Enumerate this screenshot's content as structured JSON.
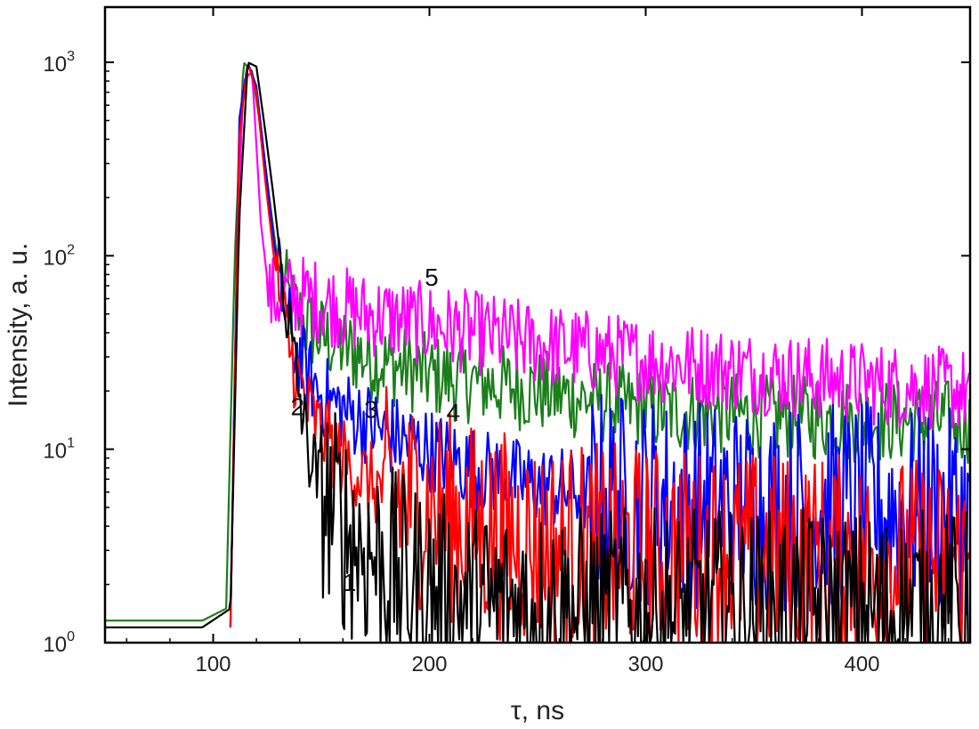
{
  "chart_data": {
    "type": "line",
    "xlabel": "τ, ns",
    "ylabel": "Intensity, a. u.",
    "xlim": [
      50,
      450
    ],
    "ylim": [
      1,
      1000
    ],
    "yscale": "log",
    "grid": false,
    "legend": "none",
    "x_ticks": [
      100,
      200,
      300,
      400
    ],
    "y_ticks": [
      {
        "value": 1,
        "base": "10",
        "exp": "0"
      },
      {
        "value": 10,
        "base": "10",
        "exp": "1"
      },
      {
        "value": 100,
        "base": "10",
        "exp": "2"
      },
      {
        "value": 1000,
        "base": "10",
        "exp": "3"
      }
    ],
    "series": [
      {
        "label": "1",
        "color": "#000000",
        "x": [
          50,
          95,
          108,
          112,
          116,
          120,
          124,
          128,
          132,
          138,
          144,
          150,
          160,
          170,
          180,
          190,
          200,
          220,
          250,
          300,
          350,
          400,
          450
        ],
        "y": [
          1.2,
          1.2,
          1.5,
          150,
          1000,
          950,
          450,
          200,
          80,
          25,
          10,
          6,
          4,
          3,
          2.5,
          2,
          1.8,
          1.5,
          1.5,
          1.4,
          1.4,
          1.4,
          1.4
        ]
      },
      {
        "label": "2",
        "color": "#ff0000",
        "x": [
          108,
          112,
          116,
          120,
          124,
          128,
          132,
          138,
          144,
          150,
          160,
          170,
          180,
          200,
          220,
          250,
          300,
          350,
          400,
          450
        ],
        "y": [
          1.2,
          400,
          1000,
          700,
          250,
          100,
          50,
          25,
          16,
          12,
          9,
          7,
          6,
          5,
          4,
          3.2,
          3,
          2.8,
          2.7,
          2.5
        ]
      },
      {
        "label": "3",
        "color": "#0000ff",
        "x": [
          108,
          112,
          116,
          120,
          124,
          128,
          132,
          138,
          144,
          150,
          160,
          170,
          180,
          200,
          220,
          250,
          300,
          350,
          400,
          450
        ],
        "y": [
          1.2,
          500,
          1000,
          750,
          300,
          120,
          60,
          32,
          24,
          19,
          16,
          14,
          12,
          10,
          8,
          6.5,
          5.5,
          5,
          5,
          4.5
        ]
      },
      {
        "label": "4",
        "color": "#1a7f1a",
        "x": [
          50,
          95,
          106,
          110,
          114,
          118,
          122,
          126,
          130,
          136,
          142,
          150,
          170,
          200,
          250,
          300,
          350,
          400,
          450
        ],
        "y": [
          1.3,
          1.3,
          1.5,
          100,
          1000,
          900,
          450,
          200,
          90,
          55,
          45,
          38,
          30,
          24,
          20,
          16,
          15,
          14,
          14
        ]
      },
      {
        "label": "5",
        "color": "#ff00ff",
        "x": [
          108,
          111,
          114,
          118,
          122,
          126,
          130,
          140,
          150,
          170,
          200,
          250,
          300,
          350,
          400,
          450
        ],
        "y": [
          1.2,
          100,
          800,
          900,
          150,
          60,
          62,
          62,
          58,
          50,
          44,
          35,
          29,
          25,
          22,
          20
        ]
      }
    ],
    "annotations": [
      {
        "text": "5",
        "x": 201,
        "y": 70
      },
      {
        "text": "4",
        "x": 211,
        "y": 14
      },
      {
        "text": "3",
        "x": 173,
        "y": 14.5
      },
      {
        "text": "2",
        "x": 139,
        "y": 15
      },
      {
        "text": "1",
        "x": 163,
        "y": 1.85
      }
    ]
  }
}
